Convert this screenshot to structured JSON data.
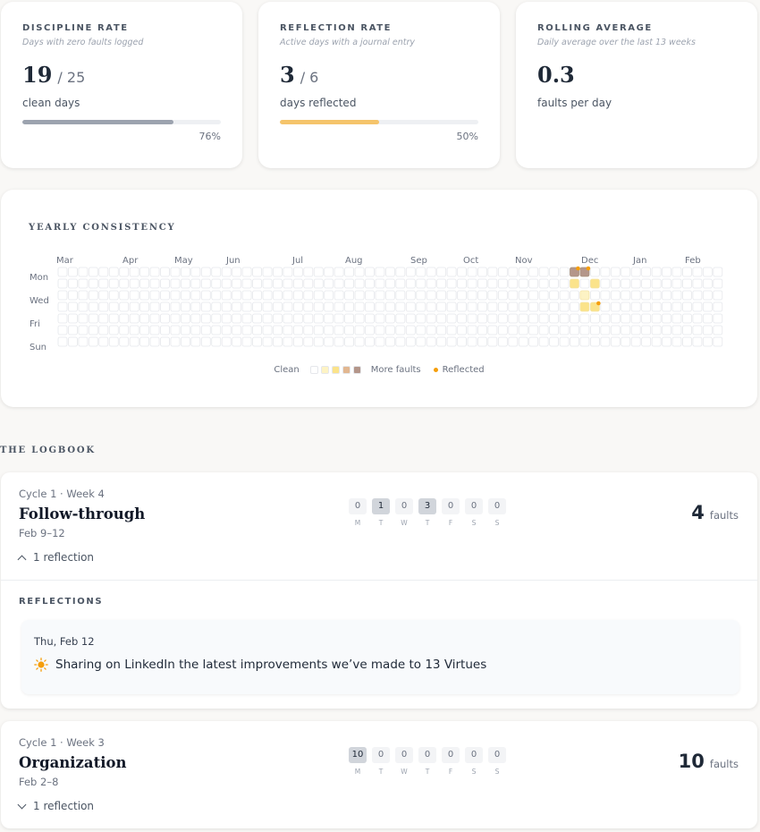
{
  "stats": [
    {
      "title": "DISCIPLINE RATE",
      "subtitle": "Days with zero faults logged",
      "value": "19",
      "denominator": "/ 25",
      "unit": "clean days",
      "progress": 0.76,
      "percent": "76%",
      "color": "#9ca3af"
    },
    {
      "title": "REFLECTION RATE",
      "subtitle": "Active days with a journal entry",
      "value": "3",
      "denominator": "/ 6",
      "unit": "days reflected",
      "progress": 0.5,
      "percent": "50%",
      "color": "#f5c46b"
    },
    {
      "title": "ROLLING AVERAGE",
      "subtitle": "Daily average over the last 13 weeks",
      "value": "0.3",
      "denominator": "",
      "unit": "faults per day"
    }
  ],
  "heatmap": {
    "title": "YEARLY CONSISTENCY",
    "months": [
      "Mar",
      "Apr",
      "May",
      "Jun",
      "Jul",
      "Aug",
      "Sep",
      "Oct",
      "Nov",
      "Dec",
      "Jan",
      "Feb"
    ],
    "day_labels": [
      "Mon",
      "Wed",
      "Fri",
      "Sun"
    ],
    "legend": {
      "clean": "Clean",
      "more": "More faults",
      "reflected": "Reflected"
    },
    "level_colors": [
      "#ffffff",
      "#fdf3c4",
      "#fbe38a",
      "#e2b790",
      "#b4968a"
    ],
    "active_cells": [
      {
        "week": 50,
        "day": 0,
        "level": 4,
        "reflected": true
      },
      {
        "week": 50,
        "day": 1,
        "level": 2,
        "reflected": false
      },
      {
        "week": 51,
        "day": 0,
        "level": 4,
        "reflected": true
      },
      {
        "week": 51,
        "day": 2,
        "level": 1,
        "reflected": false
      },
      {
        "week": 51,
        "day": 3,
        "level": 2,
        "reflected": false
      },
      {
        "week": 52,
        "day": 1,
        "level": 2,
        "reflected": false
      },
      {
        "week": 52,
        "day": 3,
        "level": 2,
        "reflected": true
      }
    ]
  },
  "logbook": {
    "title": "THE LOGBOOK",
    "weeks": [
      {
        "meta": "Cycle 1 · Week 4",
        "name": "Follow-through",
        "dates": "Feb 9–12",
        "counts": [
          0,
          1,
          0,
          3,
          0,
          0,
          0
        ],
        "day_letters": [
          "M",
          "T",
          "W",
          "T",
          "F",
          "S",
          "S"
        ],
        "total": "4",
        "unit": "faults",
        "toggle": "1 reflection",
        "expanded": true,
        "reflections_title": "REFLECTIONS",
        "reflections": [
          {
            "date": "Thu, Feb 12",
            "icon": "sun-icon",
            "text": "Sharing on LinkedIn the latest improvements we’ve made to 13 Virtues"
          }
        ]
      },
      {
        "meta": "Cycle 1 · Week 3",
        "name": "Organization",
        "dates": "Feb 2–8",
        "counts": [
          10,
          0,
          0,
          0,
          0,
          0,
          0
        ],
        "day_letters": [
          "M",
          "T",
          "W",
          "T",
          "F",
          "S",
          "S"
        ],
        "total": "10",
        "unit": "faults",
        "toggle": "1 reflection",
        "expanded": false
      }
    ]
  }
}
